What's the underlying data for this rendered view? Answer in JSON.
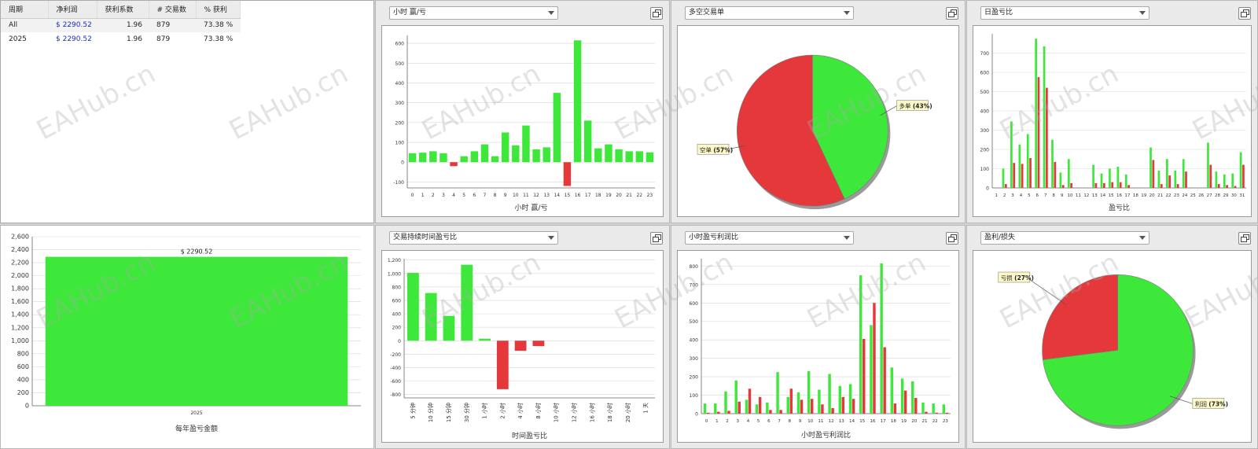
{
  "stats_table": {
    "headers": [
      "周期",
      "净利润",
      "获利系数",
      "# 交易数",
      "% 获利"
    ],
    "rows": [
      {
        "period": "All",
        "net_profit": "$ 2290.52",
        "profit_factor": "1.96",
        "trades": "879",
        "win_pct": "73.38 %"
      },
      {
        "period": "2025",
        "net_profit": "$ 2290.52",
        "profit_factor": "1.96",
        "trades": "879",
        "win_pct": "73.38 %"
      }
    ]
  },
  "panels": {
    "hourly": {
      "dropdown": "小时 赢/亏"
    },
    "longshort": {
      "dropdown": "多空交易单"
    },
    "daily": {
      "dropdown": "日盈亏比"
    },
    "duration": {
      "dropdown": "交易持续时间盈亏比"
    },
    "hourly_ratio": {
      "dropdown": "小时盈亏利润比"
    },
    "profitloss": {
      "dropdown": "盈利/损失"
    }
  },
  "watermark": "EAHub.cn",
  "colors": {
    "green": "#3ee83a",
    "red": "#e5383b",
    "grid": "#d8d8d8",
    "axis": "#666666"
  },
  "chart_data": [
    {
      "id": "yearly",
      "type": "bar",
      "categories": [
        "2025"
      ],
      "values": [
        2290.52
      ],
      "data_labels": [
        "$ 2290.52"
      ],
      "xlabel": "每年盈亏金额",
      "ylim": [
        0,
        2600
      ],
      "yticks": [
        0,
        200,
        400,
        600,
        800,
        1000,
        1200,
        1400,
        1600,
        1800,
        2000,
        2200,
        2400,
        2600
      ],
      "ytick_labels": [
        "0",
        "200",
        "400",
        "600",
        "800",
        "1,000",
        "1,200",
        "1,400",
        "1,600",
        "1,800",
        "2,000",
        "2,200",
        "2,400",
        "2,600"
      ]
    },
    {
      "id": "hourly",
      "type": "bar",
      "categories": [
        "0",
        "1",
        "2",
        "3",
        "4",
        "5",
        "6",
        "7",
        "8",
        "9",
        "10",
        "11",
        "12",
        "13",
        "14",
        "15",
        "16",
        "17",
        "18",
        "19",
        "20",
        "21",
        "22",
        "23"
      ],
      "values": [
        45,
        48,
        55,
        45,
        -20,
        30,
        55,
        90,
        30,
        150,
        85,
        185,
        65,
        75,
        350,
        -120,
        615,
        210,
        70,
        90,
        65,
        55,
        55,
        50
      ],
      "xlabel": "小时 赢/亏",
      "ylim": [
        -130,
        640
      ],
      "yticks": [
        -100,
        0,
        100,
        200,
        300,
        400,
        500,
        600
      ]
    },
    {
      "id": "longshort",
      "type": "pie",
      "labels": [
        "多单",
        "空单"
      ],
      "values": [
        43,
        57
      ],
      "value_labels": [
        "(43%)",
        "(57%)"
      ]
    },
    {
      "id": "daily",
      "type": "bar",
      "categories": [
        "1",
        "2",
        "3",
        "4",
        "5",
        "6",
        "7",
        "8",
        "9",
        "10",
        "11",
        "12",
        "13",
        "14",
        "15",
        "16",
        "17",
        "18",
        "19",
        "20",
        "21",
        "22",
        "23",
        "24",
        "25",
        "26",
        "27",
        "28",
        "29",
        "30",
        "31"
      ],
      "series": [
        {
          "values": [
            0,
            100,
            345,
            225,
            280,
            775,
            735,
            250,
            80,
            150,
            0,
            0,
            120,
            75,
            100,
            110,
            70,
            0,
            0,
            210,
            90,
            150,
            90,
            150,
            0,
            0,
            235,
            85,
            70,
            75,
            185
          ]
        },
        {
          "values": [
            0,
            20,
            130,
            125,
            155,
            575,
            520,
            135,
            15,
            25,
            0,
            0,
            25,
            25,
            30,
            30,
            15,
            0,
            0,
            145,
            20,
            65,
            20,
            85,
            0,
            0,
            120,
            20,
            15,
            10,
            120
          ]
        }
      ],
      "xlabel": "盈亏比",
      "ylim": [
        0,
        800
      ],
      "yticks": [
        0,
        100,
        200,
        300,
        400,
        500,
        600,
        700
      ]
    },
    {
      "id": "duration",
      "type": "bar",
      "categories": [
        "5 分钟",
        "10 分钟",
        "15 分钟",
        "30 分钟",
        "1 小时",
        "2 小时",
        "4 小时",
        "8 小时",
        "10 小时",
        "12 小时",
        "16 小时",
        "18 小时",
        "20 小时",
        "1 天"
      ],
      "values": [
        1010,
        710,
        370,
        1130,
        30,
        -720,
        -150,
        -80,
        0,
        0,
        0,
        0,
        0,
        0
      ],
      "xlabel": "时间盈亏比",
      "ylim": [
        -850,
        1220
      ],
      "yticks": [
        -800,
        -600,
        -400,
        -200,
        0,
        200,
        400,
        600,
        800,
        1000,
        1200
      ],
      "ytick_labels": [
        "-800",
        "-600",
        "-400",
        "-200",
        "0",
        "200",
        "400",
        "600",
        "800",
        "1,000",
        "1,200"
      ]
    },
    {
      "id": "hourly_ratio",
      "type": "bar",
      "categories": [
        "0",
        "1",
        "2",
        "3",
        "4",
        "5",
        "6",
        "7",
        "8",
        "9",
        "10",
        "11",
        "12",
        "13",
        "14",
        "15",
        "16",
        "17",
        "18",
        "19",
        "20",
        "21",
        "22",
        "23"
      ],
      "series": [
        {
          "values": [
            55,
            55,
            120,
            180,
            75,
            50,
            60,
            225,
            90,
            115,
            230,
            130,
            215,
            150,
            160,
            750,
            480,
            815,
            250,
            190,
            175,
            60,
            55,
            50
          ]
        },
        {
          "values": [
            5,
            10,
            15,
            65,
            135,
            90,
            20,
            20,
            135,
            75,
            80,
            50,
            30,
            90,
            80,
            405,
            600,
            360,
            55,
            125,
            85,
            10,
            5,
            5
          ]
        }
      ],
      "xlabel": "小时盈亏利润比",
      "ylim": [
        0,
        840
      ],
      "yticks": [
        0,
        100,
        200,
        300,
        400,
        500,
        600,
        700,
        800
      ]
    },
    {
      "id": "profitloss",
      "type": "pie",
      "labels": [
        "利润",
        "亏损"
      ],
      "values": [
        73,
        27
      ],
      "value_labels": [
        "(73%)",
        "(27%)"
      ]
    }
  ]
}
